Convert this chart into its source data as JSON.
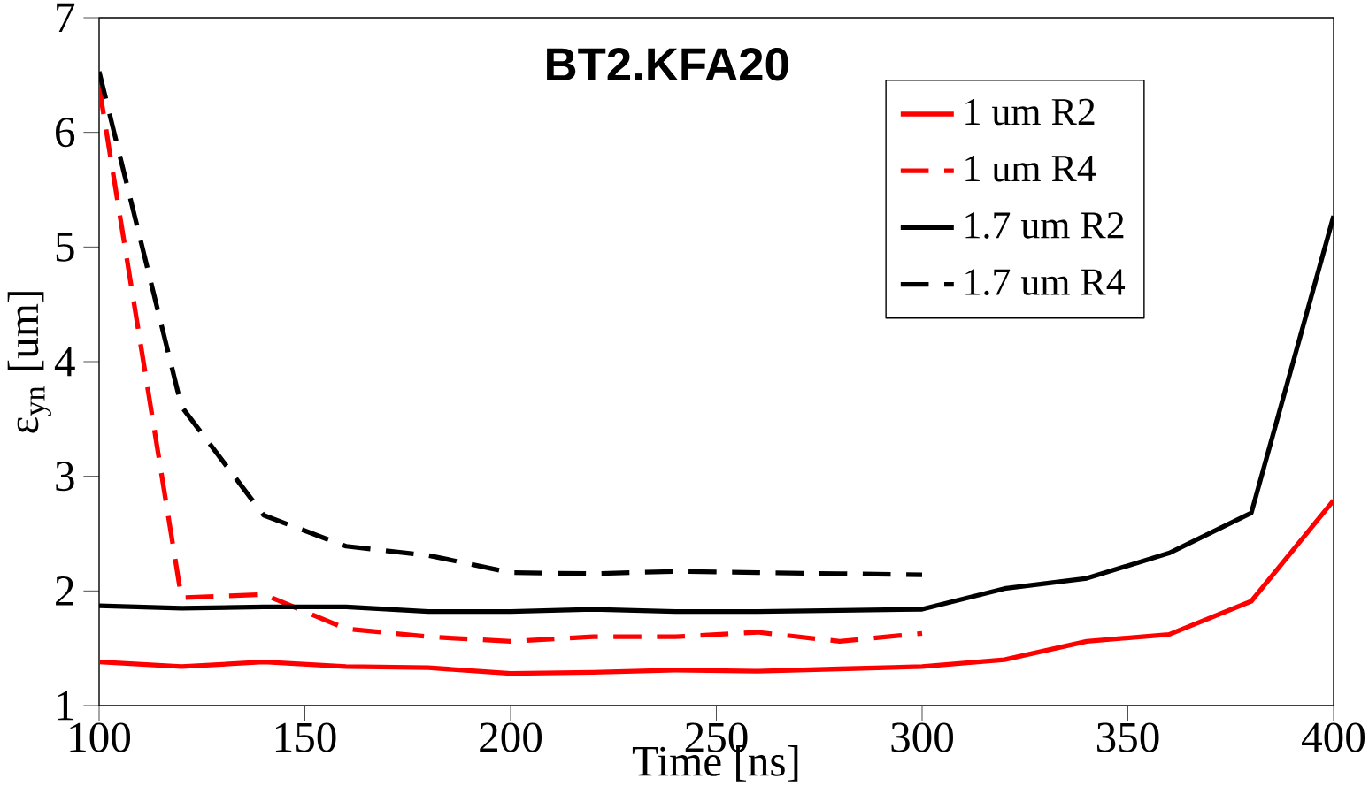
{
  "chart_data": {
    "type": "line",
    "title": "**BT2.KFA20**",
    "xlabel": "Time [ns]",
    "ylabel": "ε$_{yn}$ [um]",
    "x": [
      100,
      120,
      140,
      160,
      180,
      200,
      220,
      240,
      260,
      280,
      300,
      320,
      340,
      360,
      380,
      400
    ],
    "series": [
      {
        "name": "1 um R2",
        "color": "#ff0000",
        "line_style": "solid",
        "values": [
          1.38,
          1.34,
          1.38,
          1.34,
          1.33,
          1.28,
          1.29,
          1.31,
          1.3,
          1.32,
          1.34,
          1.4,
          1.56,
          1.62,
          1.91,
          2.79
        ]
      },
      {
        "name": "1 um R4",
        "color": "#ff0000",
        "line_style": "dashed",
        "values": [
          6.4,
          1.94,
          1.97,
          1.67,
          1.6,
          1.56,
          1.6,
          1.6,
          1.64,
          1.56,
          1.63,
          null,
          null,
          null,
          null,
          null
        ]
      },
      {
        "name": "1.7 um R2",
        "color": "#000000",
        "line_style": "solid",
        "values": [
          1.87,
          1.85,
          1.86,
          1.86,
          1.82,
          1.82,
          1.84,
          1.82,
          1.82,
          1.83,
          1.84,
          2.02,
          2.11,
          2.33,
          2.68,
          5.27
        ]
      },
      {
        "name": "1.7 um R4",
        "color": "#000000",
        "line_style": "dashed",
        "values": [
          6.53,
          3.61,
          2.66,
          2.39,
          2.31,
          2.16,
          2.15,
          2.17,
          2.16,
          2.15,
          2.14,
          null,
          null,
          null,
          null,
          null
        ]
      }
    ],
    "xlim": [
      100,
      400
    ],
    "ylim": [
      1,
      7
    ],
    "xticks": [
      100,
      150,
      200,
      250,
      300,
      350,
      400
    ],
    "yticks": [
      1,
      2,
      3,
      4,
      5,
      6,
      7
    ],
    "grid": false,
    "legend": "top right",
    "marker": "none"
  }
}
